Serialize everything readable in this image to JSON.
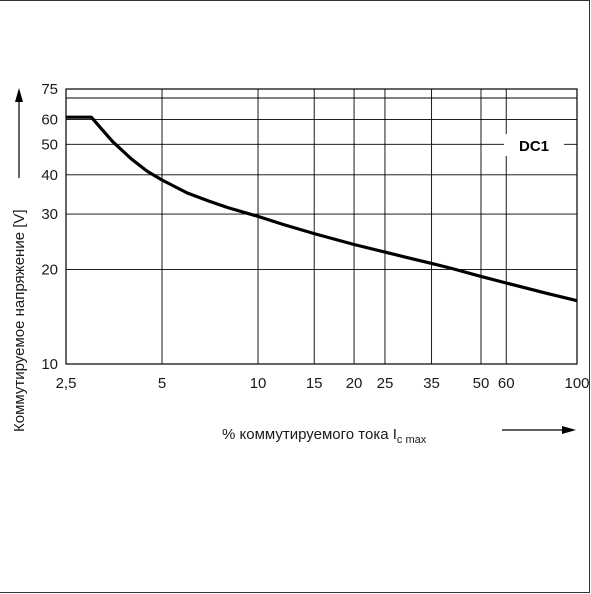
{
  "chart_data": {
    "type": "line",
    "x_scale": "log",
    "y_scale": "log",
    "xlim": [
      2.5,
      100
    ],
    "ylim": [
      10,
      75
    ],
    "x_ticks": [
      2.5,
      5,
      10,
      15,
      20,
      25,
      35,
      50,
      60,
      100
    ],
    "x_tick_labels": [
      "2,5",
      "5",
      "10",
      "15",
      "20",
      "25",
      "35",
      "50",
      "60",
      "100"
    ],
    "y_ticks": [
      10,
      20,
      30,
      40,
      50,
      60,
      75
    ],
    "y_tick_labels": [
      "10",
      "20",
      "30",
      "40",
      "50",
      "60",
      "75"
    ],
    "xlabel_main": "% коммутируемого тока I",
    "xlabel_sub": "c max",
    "ylabel": "Коммутируемое напряжение [V]",
    "grid": true,
    "series": [
      {
        "name": "DC1",
        "x": [
          2.5,
          3.0,
          3.5,
          4.0,
          4.5,
          5.0,
          6.0,
          7.0,
          8.0,
          10,
          12,
          15,
          20,
          25,
          30,
          35,
          40,
          50,
          60,
          80,
          100
        ],
        "y": [
          61,
          61,
          51,
          45,
          41,
          38.5,
          35,
          33,
          31.5,
          29.5,
          27.8,
          26,
          24,
          22.7,
          21.7,
          20.9,
          20.2,
          19.0,
          18.1,
          16.8,
          15.9
        ]
      }
    ]
  }
}
